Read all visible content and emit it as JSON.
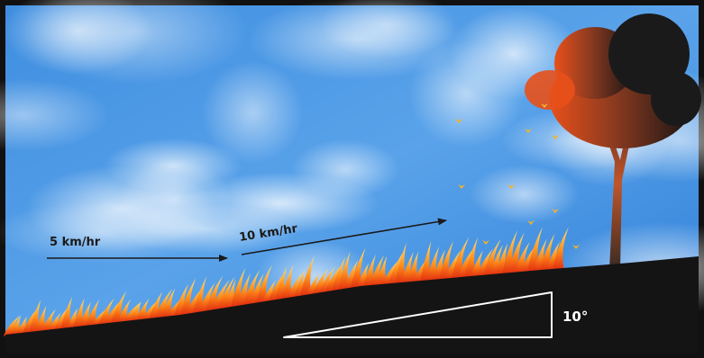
{
  "labels": {
    "slow": "5 km/hr",
    "fast": "10 km/hr",
    "angle": "10°"
  }
}
